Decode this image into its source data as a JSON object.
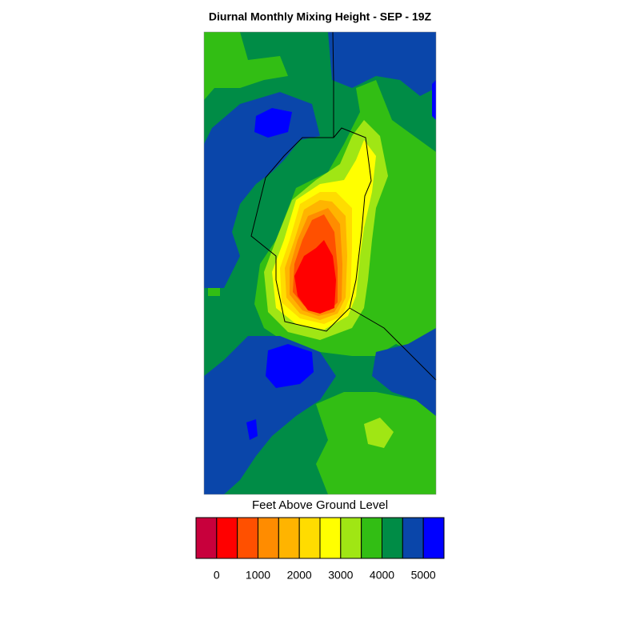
{
  "title": "Diurnal Monthly Mixing Height - SEP - 19Z",
  "colorbar": {
    "label": "Feet Above Ground Level",
    "colors": [
      "#c8003c",
      "#ff0000",
      "#ff5000",
      "#ff8c00",
      "#ffb400",
      "#ffdc00",
      "#ffff00",
      "#a0e614",
      "#32be14",
      "#008c46",
      "#0a46aa",
      "#0000ff"
    ],
    "ticks": [
      0,
      1000,
      2000,
      3000,
      4000,
      5000
    ]
  }
}
